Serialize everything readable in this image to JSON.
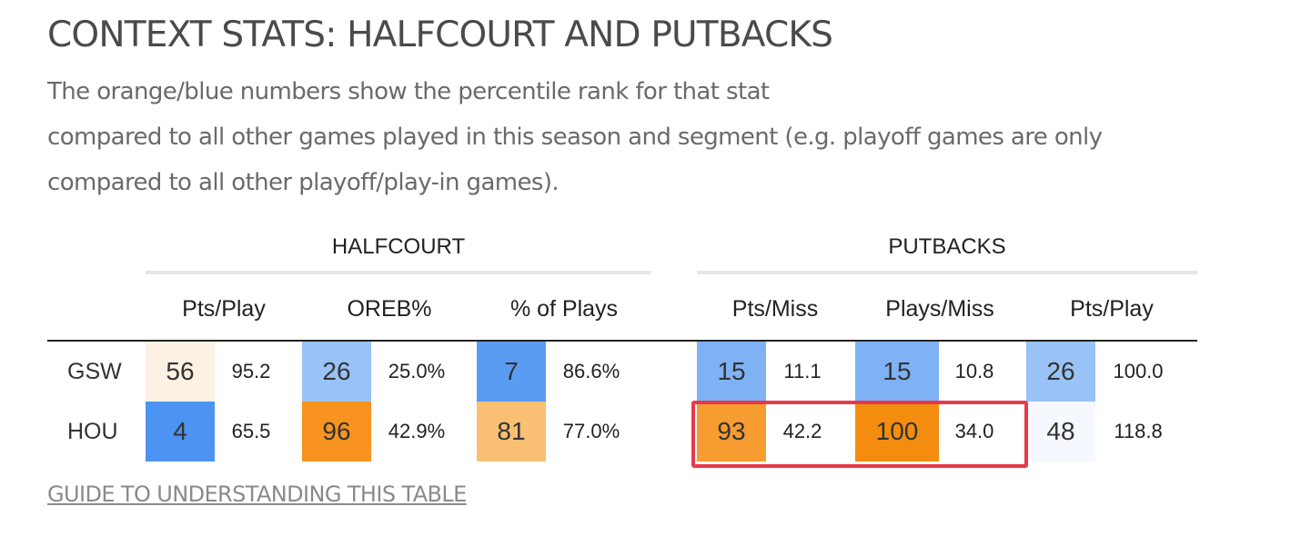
{
  "title": "CONTEXT STATS: HALFCOURT AND PUTBACKS",
  "subtitle": {
    "line1": "The orange/blue numbers show the percentile rank for that stat",
    "line2": "compared to all other games played in this season and segment (e.g. playoff games are only",
    "line3": "compared to all other playoff/play-in games)."
  },
  "table": {
    "groups": [
      {
        "label": "HALFCOURT",
        "columns": [
          "Pts/Play",
          "OREB%",
          "% of Plays"
        ]
      },
      {
        "label": "PUTBACKS",
        "columns": [
          "Pts/Miss",
          "Plays/Miss",
          "Pts/Play"
        ]
      }
    ],
    "rows": [
      {
        "team": "GSW",
        "cells": [
          {
            "pct": "56",
            "value": "95.2",
            "color": "#fdf1e3"
          },
          {
            "pct": "26",
            "value": "25.0%",
            "color": "#99c3f6"
          },
          {
            "pct": "7",
            "value": "86.6%",
            "color": "#5a9cf2"
          },
          {
            "pct": "15",
            "value": "11.1",
            "color": "#7fb2f4"
          },
          {
            "pct": "15",
            "value": "10.8",
            "color": "#7fb2f4"
          },
          {
            "pct": "26",
            "value": "100.0",
            "color": "#99c3f6"
          }
        ]
      },
      {
        "team": "HOU",
        "cells": [
          {
            "pct": "4",
            "value": "65.5",
            "color": "#4d93f1"
          },
          {
            "pct": "96",
            "value": "42.9%",
            "color": "#f7931e"
          },
          {
            "pct": "81",
            "value": "77.0%",
            "color": "#f9bf72"
          },
          {
            "pct": "93",
            "value": "42.2",
            "color": "#f79c30"
          },
          {
            "pct": "100",
            "value": "34.0",
            "color": "#f48d0f"
          },
          {
            "pct": "48",
            "value": "118.8",
            "color": "#f5f9ff"
          }
        ]
      }
    ]
  },
  "highlight_color": "#e8394a",
  "guide_link": "GUIDE TO UNDERSTANDING THIS TABLE"
}
